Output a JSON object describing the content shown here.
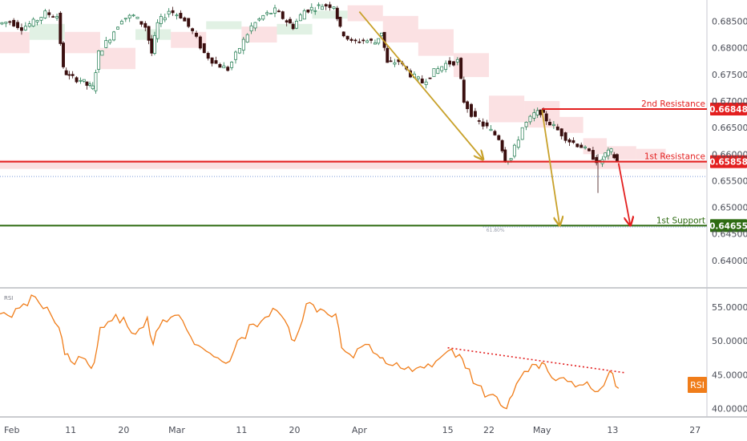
{
  "symbol": "",
  "chart_data": [
    {
      "type": "candlestick",
      "ylim": [
        0.635,
        0.689
      ],
      "y_ticks": [
        "0.68500",
        "0.68000",
        "0.67500",
        "0.67000",
        "0.66500",
        "0.66000",
        "0.65500",
        "0.65000",
        "0.64500",
        "0.64000"
      ],
      "x_ticks": [
        "Feb",
        "11",
        "20",
        "Mar",
        "11",
        "20",
        "Apr",
        "15",
        "22",
        "May",
        "13",
        "27"
      ],
      "x_tick_days": [
        31,
        41,
        50,
        59,
        70,
        79,
        90,
        105,
        112,
        121,
        133,
        147
      ],
      "x_days_range": [
        29,
        149
      ],
      "current_price": "0.65858",
      "levels": [
        {
          "label": "2nd Resistance",
          "price": 0.66848,
          "price_text": "0.66848",
          "color": "#e31f1f"
        },
        {
          "label": "1st Resistance",
          "price": 0.65858,
          "price_text": "0.65858",
          "color": "#e31f1f"
        },
        {
          "label": "1st Support",
          "price": 0.64655,
          "price_text": "0.64655",
          "color": "#2e6b12"
        }
      ],
      "fib_label": "61.80%",
      "price_path": [
        [
          29,
          0.6845
        ],
        [
          31,
          0.685
        ],
        [
          33,
          0.6838
        ],
        [
          35,
          0.6848
        ],
        [
          37,
          0.6865
        ],
        [
          39,
          0.686
        ],
        [
          40,
          0.676
        ],
        [
          41,
          0.6745
        ],
        [
          43,
          0.674
        ],
        [
          44,
          0.673
        ],
        [
          45,
          0.6725
        ],
        [
          46,
          0.679
        ],
        [
          48,
          0.682
        ],
        [
          50,
          0.6855
        ],
        [
          52,
          0.686
        ],
        [
          54,
          0.684
        ],
        [
          55,
          0.679
        ],
        [
          56,
          0.6845
        ],
        [
          58,
          0.687
        ],
        [
          60,
          0.686
        ],
        [
          62,
          0.683
        ],
        [
          64,
          0.679
        ],
        [
          66,
          0.677
        ],
        [
          68,
          0.676
        ],
        [
          70,
          0.68
        ],
        [
          72,
          0.684
        ],
        [
          74,
          0.686
        ],
        [
          76,
          0.687
        ],
        [
          78,
          0.685
        ],
        [
          79,
          0.684
        ],
        [
          81,
          0.687
        ],
        [
          84,
          0.688
        ],
        [
          86,
          0.688
        ],
        [
          87,
          0.6835
        ],
        [
          89,
          0.681
        ],
        [
          91,
          0.6815
        ],
        [
          93,
          0.681
        ],
        [
          94,
          0.683
        ],
        [
          95,
          0.677
        ],
        [
          97,
          0.6775
        ],
        [
          99,
          0.675
        ],
        [
          101,
          0.6735
        ],
        [
          103,
          0.6755
        ],
        [
          105,
          0.677
        ],
        [
          107,
          0.6775
        ],
        [
          108,
          0.67
        ],
        [
          110,
          0.6665
        ],
        [
          112,
          0.665
        ],
        [
          114,
          0.663
        ],
        [
          115,
          0.659
        ],
        [
          116,
          0.6592
        ],
        [
          118,
          0.665
        ],
        [
          120,
          0.6675
        ],
        [
          121,
          0.668
        ],
        [
          122,
          0.6665
        ],
        [
          124,
          0.6645
        ],
        [
          126,
          0.6625
        ],
        [
          128,
          0.6615
        ],
        [
          130,
          0.6595
        ],
        [
          131,
          0.6582
        ],
        [
          132,
          0.66
        ],
        [
          133,
          0.6605
        ],
        [
          134,
          0.6585
        ]
      ],
      "forecast_arrows": [
        {
          "from": [
            90,
            0.6868
          ],
          "to": [
            111,
            0.659
          ],
          "color": "#c8a12a"
        },
        {
          "from": [
            121,
            0.6683
          ],
          "to": [
            124,
            0.6466
          ],
          "color": "#c8a12a"
        },
        {
          "from": [
            134,
            0.6583
          ],
          "to": [
            136,
            0.6466
          ],
          "color": "#e31f1f"
        }
      ]
    },
    {
      "type": "line",
      "series": [
        {
          "name": "RSI",
          "color": "#f07d1a"
        }
      ],
      "ylim": [
        39.0,
        57.5
      ],
      "y_ticks": [
        "55.0000",
        "50.0000",
        "45.0000",
        "40.0000"
      ],
      "label": "RSI",
      "x": [
        29,
        31,
        33,
        35,
        37,
        39,
        40,
        41,
        43,
        44,
        45,
        46,
        48,
        50,
        52,
        54,
        55,
        56,
        58,
        60,
        62,
        64,
        66,
        68,
        70,
        72,
        74,
        76,
        78,
        79,
        81,
        84,
        86,
        87,
        89,
        91,
        93,
        94,
        95,
        97,
        99,
        101,
        103,
        105,
        107,
        108,
        110,
        112,
        114,
        115,
        116,
        118,
        120,
        121,
        122,
        124,
        126,
        128,
        130,
        131,
        132,
        133,
        134
      ],
      "values": [
        54.0,
        53.5,
        55.5,
        56.5,
        55.0,
        52.0,
        48.0,
        47.0,
        47.5,
        46.5,
        46.8,
        52.0,
        53.0,
        53.5,
        51.0,
        53.5,
        49.5,
        52.0,
        53.5,
        53.0,
        49.5,
        48.5,
        47.5,
        47.0,
        50.5,
        52.5,
        53.5,
        54.5,
        52.0,
        50.0,
        55.5,
        54.5,
        54.0,
        49.0,
        47.5,
        49.5,
        48.0,
        47.5,
        46.5,
        46.0,
        45.5,
        46.0,
        47.0,
        48.5,
        48.0,
        46.0,
        43.5,
        42.0,
        40.5,
        40.0,
        42.0,
        45.5,
        46.5,
        46.8,
        45.5,
        44.5,
        44.0,
        43.5,
        42.5,
        43.0,
        44.5,
        45.2,
        43.0
      ],
      "trend_line": [
        [
          105,
          49.0
        ],
        [
          134,
          45.3
        ]
      ],
      "trend_color": "#e31f1f"
    }
  ]
}
